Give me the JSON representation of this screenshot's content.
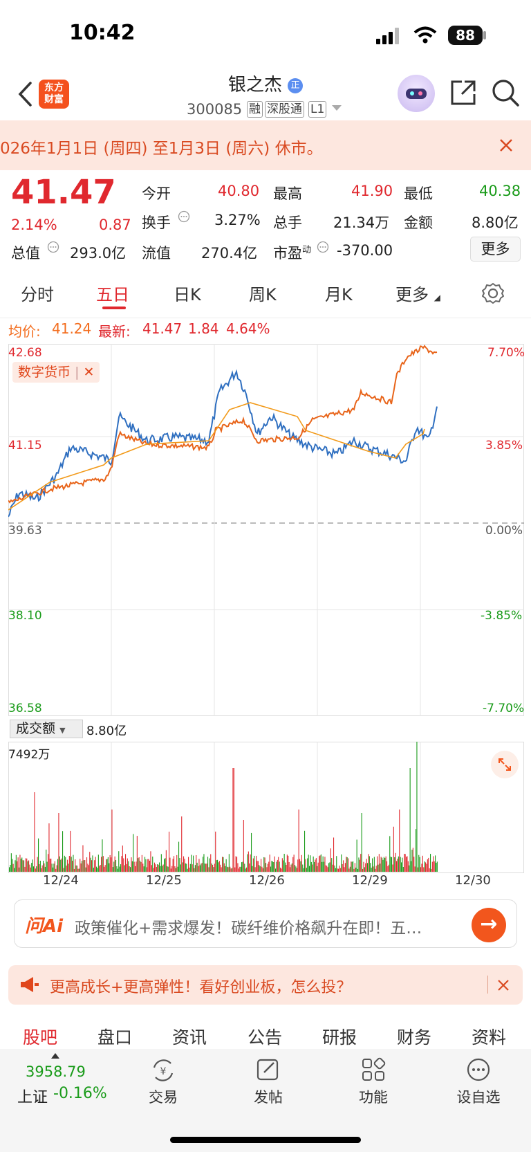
{
  "status": {
    "time": "10:42",
    "battery": "88"
  },
  "header": {
    "logo": [
      "东方",
      "财富"
    ],
    "stock_name": "银之杰",
    "name_badge": "正",
    "stock_code": "300085",
    "tags": [
      "融",
      "深股通",
      "L1"
    ]
  },
  "notice": {
    "text": "026年1月1日 (周四) 至1月3日 (周六) 休市。"
  },
  "quote": {
    "price": "41.47",
    "change_pct": "2.14%",
    "change_amt": "0.87",
    "labels": {
      "open": "今开",
      "high": "最高",
      "low": "最低",
      "turnover": "换手",
      "volume": "总手",
      "amount": "金额",
      "total_mv": "总值",
      "float_mv": "流值",
      "pe": "市盈",
      "pe_sup": "动"
    },
    "values": {
      "open": "40.80",
      "high": "41.90",
      "low": "40.38",
      "turnover": "3.27%",
      "volume": "21.34万",
      "amount": "8.80亿",
      "total_mv": "293.0亿",
      "float_mv": "270.4亿",
      "pe": "-370.00"
    },
    "more": "更多"
  },
  "tabs": [
    {
      "label": "分时"
    },
    {
      "label": "五日"
    },
    {
      "label": "日K"
    },
    {
      "label": "周K"
    },
    {
      "label": "月K"
    },
    {
      "label": "更多"
    }
  ],
  "legend": {
    "avg_label": "均价:",
    "avg_value": "41.24",
    "last_label": "最新:",
    "last_value": "41.47",
    "change": "1.84",
    "change_pct": "4.64%"
  },
  "chart": {
    "tag": "数字货币",
    "y_left": [
      "42.68",
      "41.15",
      "39.63",
      "38.10",
      "36.58"
    ],
    "y_right": [
      "7.70%",
      "3.85%",
      "0.00%",
      "-3.85%",
      "-7.70%"
    ],
    "colors": {
      "price": "#2f6fc0",
      "avg": "#f29a1a",
      "index": "#e8651b",
      "up": "#e0282e",
      "down": "#1a9b1a"
    }
  },
  "chart_data": {
    "type": "line",
    "ylim": [
      36.58,
      42.68
    ],
    "ylim_pct": [
      -7.7,
      7.7
    ],
    "x_labels": [
      "12/24",
      "12/25",
      "12/26",
      "12/29",
      "12/30"
    ],
    "series": [],
    "volume": {
      "selector": "成交额",
      "total": "8.80亿",
      "max_label": "7492万"
    }
  },
  "ai": {
    "logo": "问Ai",
    "text": "政策催化+需求爆发！碳纤维价格飙升在即！五…"
  },
  "promo": {
    "text": "更高成长+更高弹性！看好创业板，怎么投？"
  },
  "bottom_tabs": [
    {
      "label": "股吧"
    },
    {
      "label": "盘口"
    },
    {
      "label": "资讯"
    },
    {
      "label": "公告"
    },
    {
      "label": "研报"
    },
    {
      "label": "财务"
    },
    {
      "label": "资料"
    }
  ],
  "nav": {
    "index_value": "3958.79",
    "index_name": "上证",
    "index_change": "-0.16%",
    "items": [
      {
        "label": "交易"
      },
      {
        "label": "发帖"
      },
      {
        "label": "功能"
      },
      {
        "label": "设自选"
      }
    ]
  }
}
